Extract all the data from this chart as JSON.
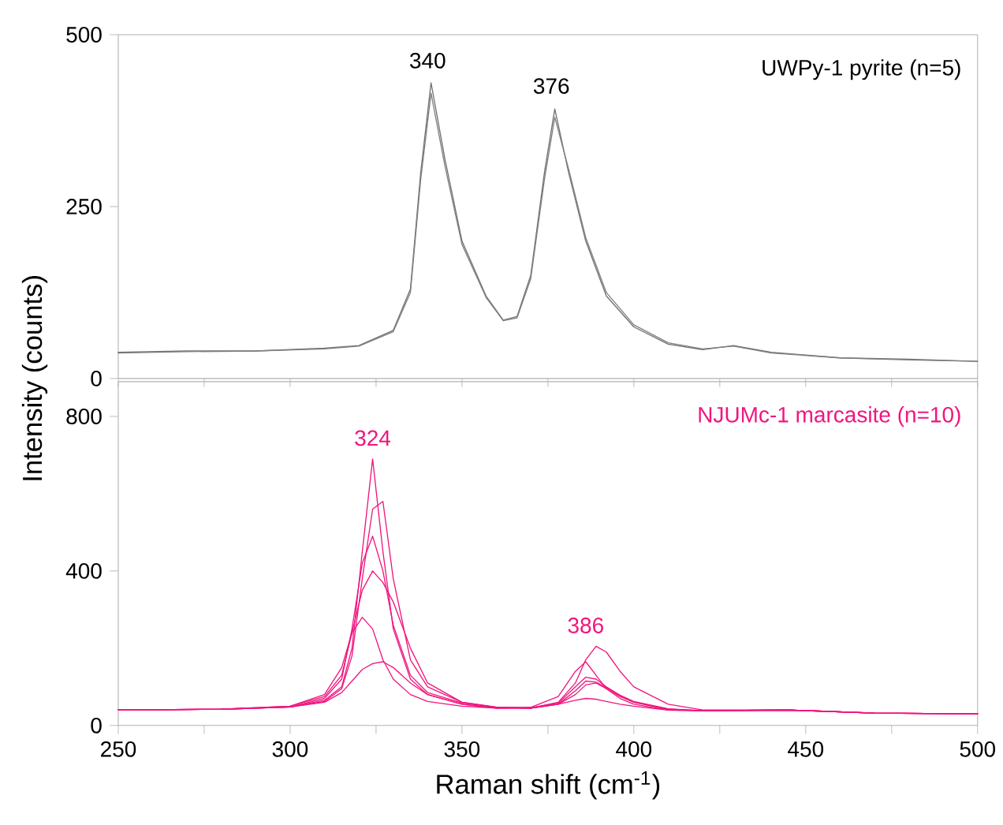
{
  "chart_data": [
    {
      "type": "line",
      "annotations": [
        "UWPy-1 pyrite (n=5)",
        {
          "text": "340",
          "x": 340,
          "y": 432
        },
        {
          "text": "376",
          "x": 376,
          "y": 395
        }
      ],
      "xlim": [
        250,
        500
      ],
      "xticks": [
        250,
        275,
        300,
        325,
        350,
        375,
        400,
        425,
        450,
        475,
        500
      ],
      "tick_labels": "y",
      "ylim": [
        0,
        500
      ],
      "yticks": [
        0,
        250,
        500
      ],
      "marker": "none",
      "line_style": "solid",
      "series": [
        {
          "color": "#707070",
          "x": [
            250,
            270,
            290,
            310,
            320,
            330,
            335,
            338,
            341,
            345,
            350,
            357,
            362,
            366,
            370,
            374,
            377,
            381,
            386,
            392,
            400,
            410,
            420,
            429,
            440,
            460,
            480,
            500
          ],
          "values": [
            38,
            40,
            40,
            44,
            48,
            70,
            130,
            300,
            430,
            320,
            200,
            120,
            85,
            90,
            150,
            300,
            392,
            300,
            200,
            120,
            75,
            50,
            42,
            48,
            38,
            30,
            28,
            25
          ]
        },
        {
          "color": "#808080",
          "x": [
            250,
            270,
            290,
            310,
            320,
            330,
            335,
            338,
            341,
            345,
            350,
            357,
            362,
            366,
            370,
            374,
            377,
            381,
            386,
            392,
            400,
            410,
            420,
            429,
            440,
            460,
            480,
            500
          ],
          "values": [
            37,
            39,
            40,
            43,
            47,
            68,
            125,
            290,
            415,
            310,
            195,
            118,
            84,
            88,
            145,
            290,
            380,
            305,
            205,
            125,
            78,
            52,
            43,
            47,
            37,
            30,
            27,
            25
          ]
        }
      ]
    },
    {
      "type": "line",
      "annotations": [
        "NJUMc-1 marcasite (n=10)",
        {
          "text": "324",
          "x": 324,
          "y": 690
        },
        {
          "text": "386",
          "x": 386,
          "y": 205
        }
      ],
      "xlabel": "Raman shift (cm$^{-1}$)",
      "ylabel": "Intensity (counts)",
      "xlim": [
        250,
        500
      ],
      "xticks": [
        250,
        {
          "value": 275,
          "label": null
        },
        300,
        {
          "value": 325,
          "label": null
        },
        350,
        {
          "value": 375,
          "label": null
        },
        400,
        {
          "value": 425,
          "label": null
        },
        450,
        {
          "value": 475,
          "label": null
        },
        500
      ],
      "ylim": [
        0,
        890
      ],
      "yticks": [
        0,
        400,
        800
      ],
      "marker": "none",
      "line_style": "solid",
      "x": [
        250,
        280,
        300,
        310,
        315,
        318,
        321,
        324,
        327,
        330,
        335,
        340,
        350,
        360,
        370,
        378,
        383,
        386,
        389,
        392,
        396,
        400,
        410,
        420,
        445,
        470,
        500
      ],
      "series": [
        {
          "color": "#f0167f",
          "values": [
            40,
            42,
            48,
            65,
            100,
            200,
            450,
            690,
            450,
            250,
            120,
            80,
            55,
            45,
            45,
            55,
            80,
            105,
            110,
            95,
            75,
            60,
            42,
            38,
            40,
            32,
            30
          ]
        },
        {
          "color": "#f0167f",
          "values": [
            40,
            42,
            48,
            62,
            95,
            180,
            380,
            560,
            580,
            380,
            170,
            100,
            60,
            48,
            45,
            60,
            110,
            170,
            205,
            190,
            140,
            100,
            55,
            40,
            40,
            32,
            30
          ]
        },
        {
          "color": "#f0167f",
          "values": [
            40,
            42,
            48,
            70,
            120,
            250,
            420,
            490,
            400,
            260,
            130,
            85,
            58,
            47,
            45,
            58,
            100,
            125,
            120,
            100,
            78,
            62,
            43,
            38,
            40,
            32,
            30
          ]
        },
        {
          "color": "#f0167f",
          "values": [
            40,
            42,
            50,
            75,
            130,
            240,
            350,
            400,
            370,
            320,
            200,
            110,
            60,
            47,
            45,
            55,
            90,
            115,
            112,
            98,
            78,
            60,
            42,
            38,
            40,
            32,
            30
          ]
        },
        {
          "color": "#f0167f",
          "values": [
            40,
            42,
            50,
            80,
            150,
            240,
            280,
            250,
            170,
            120,
            80,
            62,
            50,
            45,
            47,
            75,
            140,
            165,
            130,
            95,
            70,
            55,
            40,
            38,
            40,
            32,
            30
          ]
        },
        {
          "color": "#f0167f",
          "values": [
            40,
            42,
            48,
            60,
            85,
            115,
            145,
            160,
            165,
            150,
            110,
            80,
            55,
            45,
            45,
            55,
            65,
            70,
            68,
            62,
            55,
            50,
            40,
            38,
            40,
            32,
            30
          ]
        }
      ]
    }
  ]
}
